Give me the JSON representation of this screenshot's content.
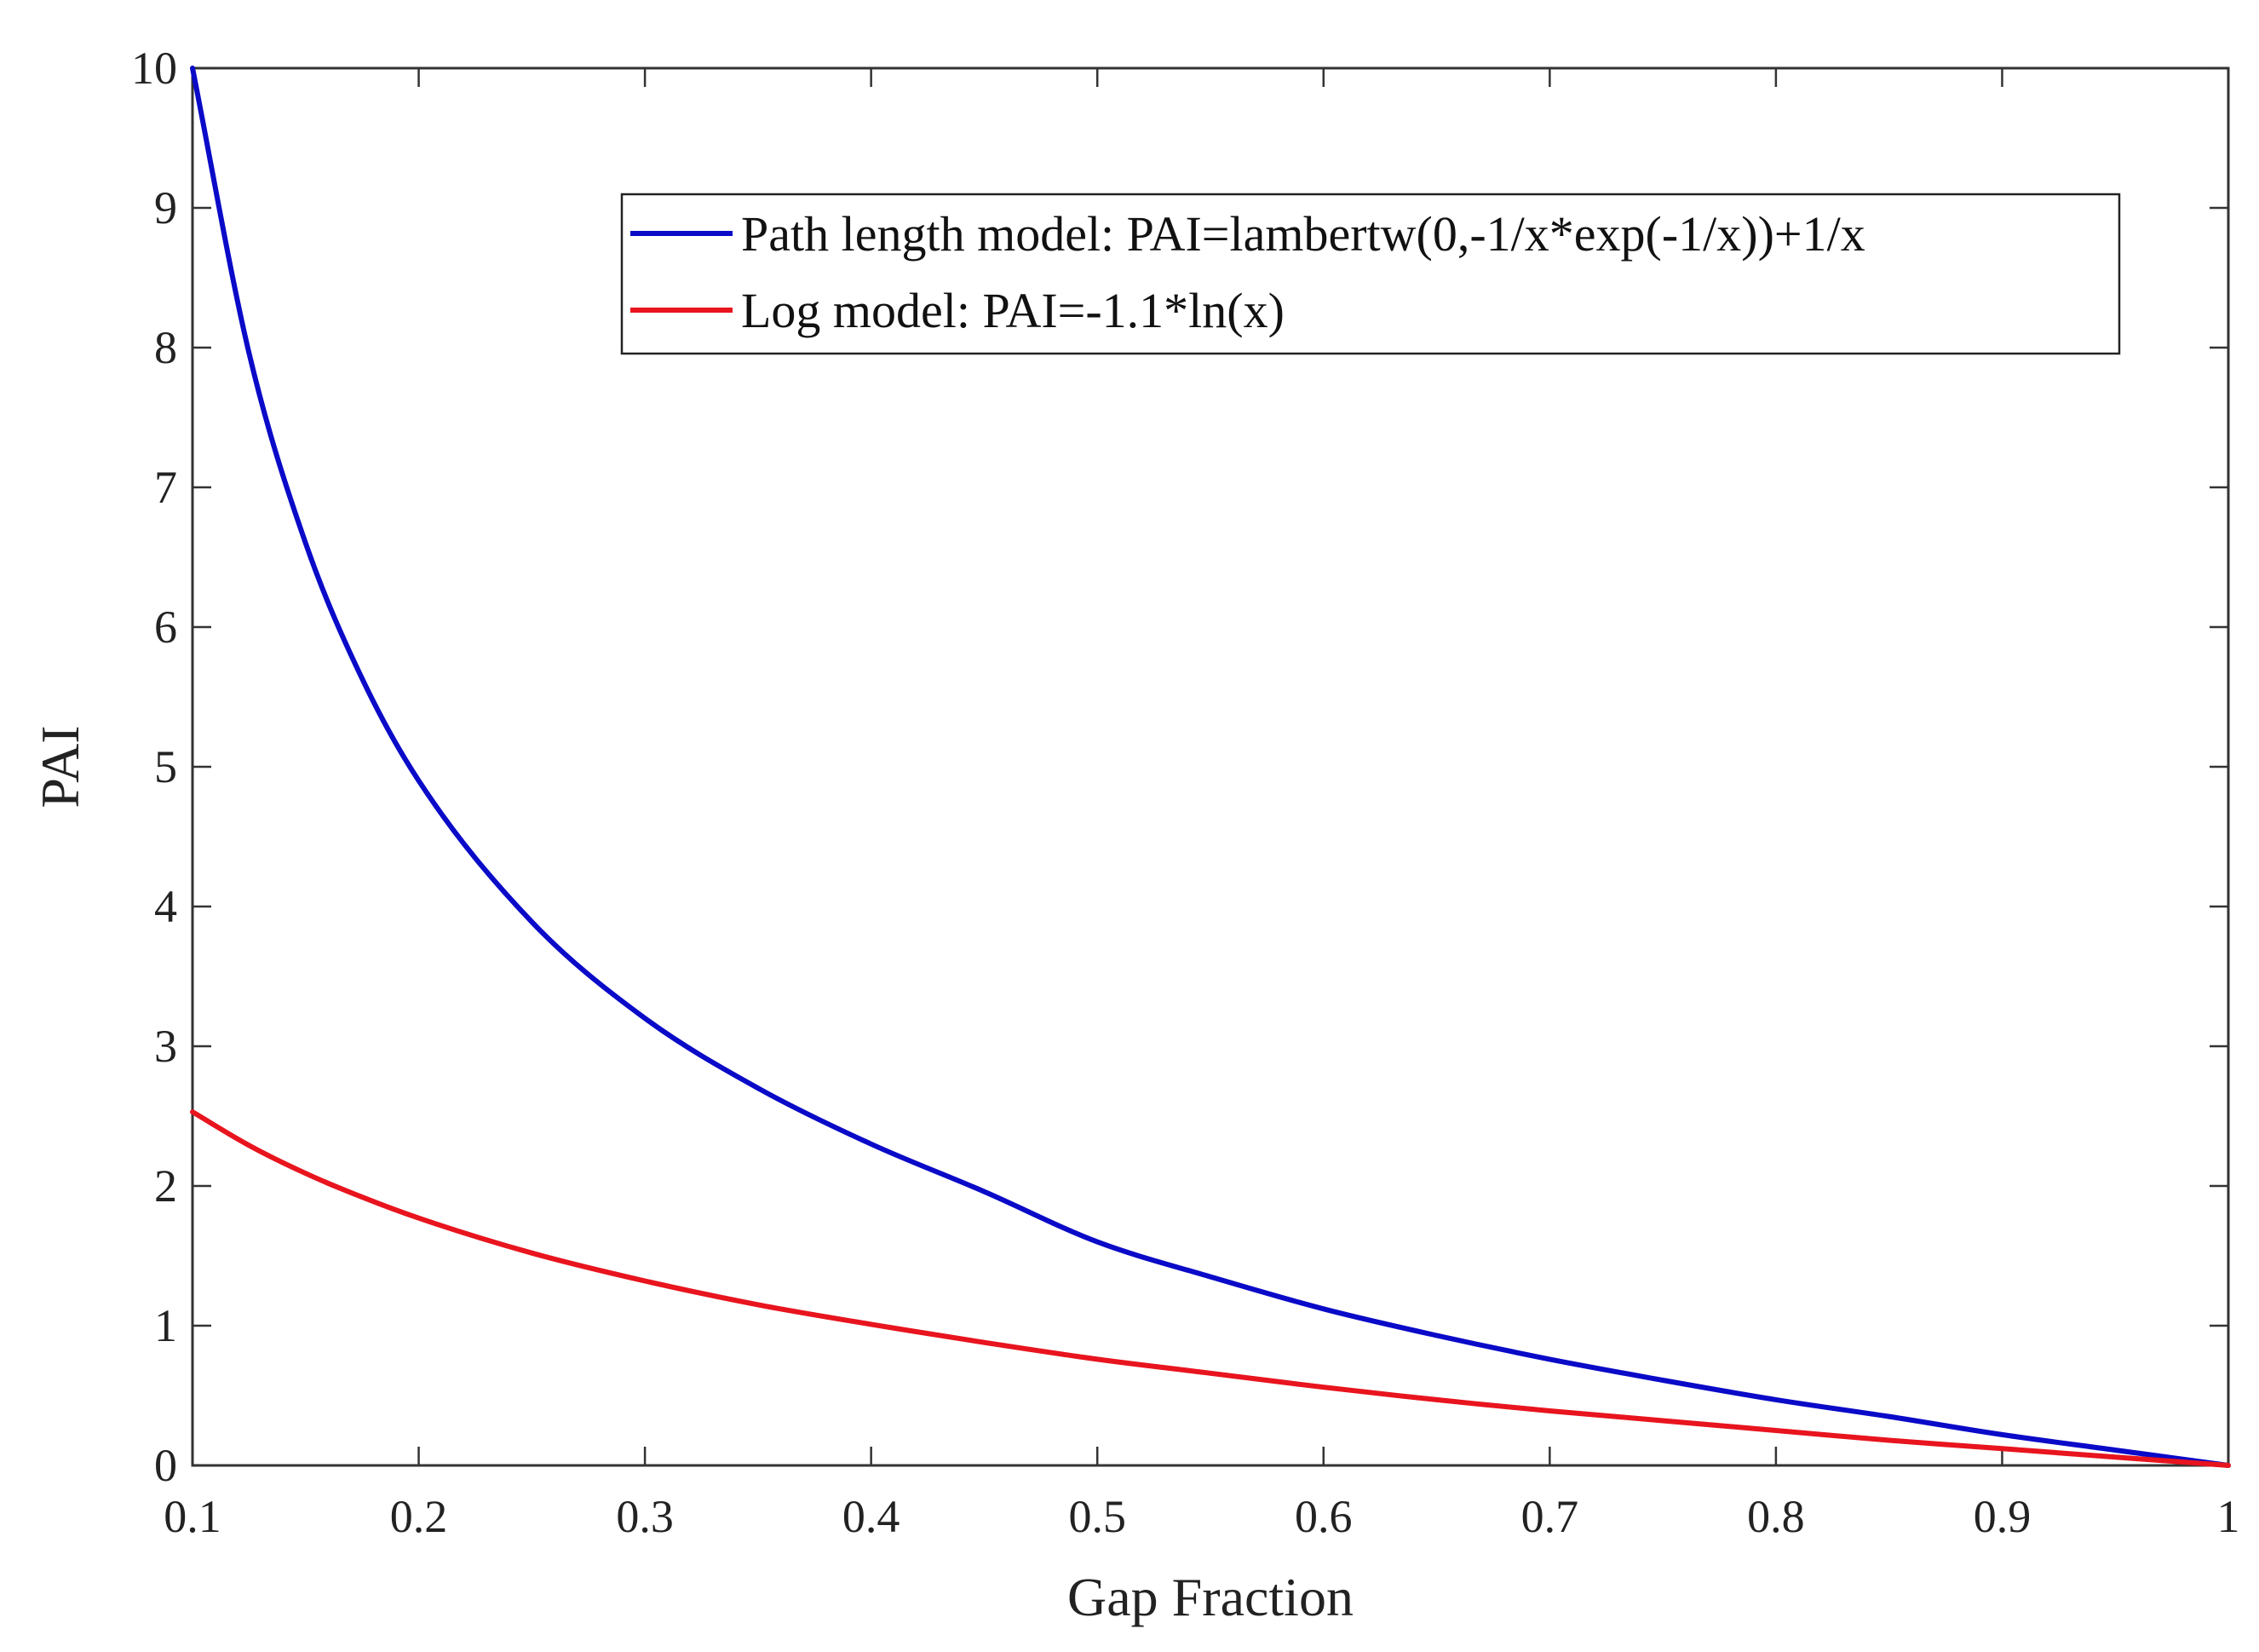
{
  "chart_data": {
    "type": "line",
    "title": "",
    "xlabel": "Gap Fraction",
    "ylabel": "PAI",
    "xlim": [
      0.1,
      1
    ],
    "ylim": [
      0,
      10
    ],
    "xticks": [
      0.1,
      0.2,
      0.3,
      0.4,
      0.5,
      0.6,
      0.7,
      0.8,
      0.9,
      1
    ],
    "xtick_labels": [
      "0.1",
      "0.2",
      "0.3",
      "0.4",
      "0.5",
      "0.6",
      "0.7",
      "0.8",
      "0.9",
      "1"
    ],
    "yticks": [
      0,
      1,
      2,
      3,
      4,
      5,
      6,
      7,
      8,
      9,
      10
    ],
    "ytick_labels": [
      "0",
      "1",
      "2",
      "3",
      "4",
      "5",
      "6",
      "7",
      "8",
      "9",
      "10"
    ],
    "grid": false,
    "legend_position": "top-right",
    "x": [
      0.1,
      0.125,
      0.15,
      0.175,
      0.2,
      0.25,
      0.3,
      0.35,
      0.4,
      0.45,
      0.5,
      0.55,
      0.6,
      0.65,
      0.7,
      0.75,
      0.8,
      0.85,
      0.9,
      0.95,
      1.0
    ],
    "series": [
      {
        "name": "Path length model: PAI=lambertw(0,-1/x*exp(-1/x))+1/x",
        "color": "#0a0ac8",
        "values": [
          10.0,
          7.96,
          6.6,
          5.63,
          4.9,
          3.89,
          3.2,
          2.7,
          2.3,
          1.96,
          1.6,
          1.35,
          1.12,
          0.93,
          0.76,
          0.61,
          0.47,
          0.35,
          0.22,
          0.11,
          0.0
        ]
      },
      {
        "name": "Log model: PAI=-1.1*ln(x)",
        "color": "#e8141e",
        "values": [
          2.53,
          2.29,
          2.09,
          1.92,
          1.77,
          1.52,
          1.32,
          1.15,
          1.01,
          0.88,
          0.76,
          0.66,
          0.56,
          0.47,
          0.39,
          0.32,
          0.25,
          0.18,
          0.12,
          0.06,
          0.0
        ]
      }
    ]
  }
}
